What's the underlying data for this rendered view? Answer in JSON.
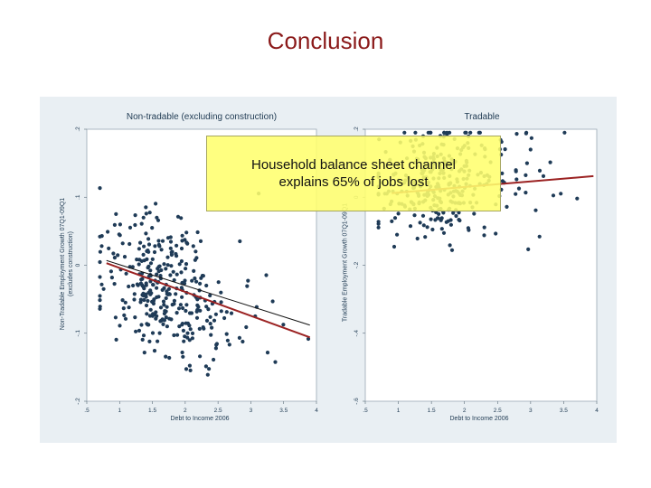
{
  "slide": {
    "title": "Conclusion"
  },
  "callout": {
    "line1": "Household balance sheet channel",
    "line2": "explains 65% of jobs lost",
    "background_color": "#ffff6e"
  },
  "chart_data": [
    {
      "type": "scatter",
      "title": "Non-tradable (excluding construction)",
      "xlabel": "Debt to Income 2006",
      "ylabel": "Non-Tradable Employment Growth 07Q1-09Q1",
      "ylabel2": "(excludes construction)",
      "xlim": [
        0.5,
        4
      ],
      "ylim": [
        -0.2,
        0.2
      ],
      "xticks": [
        ".5",
        "1",
        "1.5",
        "2",
        "2.5",
        "3",
        "3.5",
        "4"
      ],
      "yticks": [
        ".2",
        ".1",
        "0",
        "-.1",
        "-.2"
      ],
      "point_color": "#1f3b57",
      "fit_lines": [
        {
          "color": "#9b2222",
          "x": [
            0.8,
            3.9
          ],
          "y": [
            0.003,
            -0.106
          ]
        },
        {
          "color": "#111111",
          "x": [
            0.8,
            3.9
          ],
          "y": [
            0.007,
            -0.088
          ]
        }
      ],
      "scatter_params": {
        "n": 340,
        "x_center": 1.65,
        "slope": -0.035,
        "intercept": 0.028,
        "noise": 0.05,
        "seed": 11
      }
    },
    {
      "type": "scatter",
      "title": "Tradable",
      "xlabel": "Debt to Income 2006",
      "ylabel": "Tradable Employment Growth 07Q1-09Q1",
      "xlim": [
        0.5,
        4
      ],
      "ylim": [
        -0.6,
        0.2
      ],
      "xticks": [
        ".5",
        "1",
        "1.5",
        "2",
        "2.5",
        "3",
        "3.5",
        "4"
      ],
      "yticks": [
        ".2",
        "0",
        "-.2",
        "-.4",
        "-.6"
      ],
      "point_color": "#1f3b57",
      "fit_lines": [
        {
          "color": "#9b2222",
          "x": [
            0.9,
            3.95
          ],
          "y": [
            0.012,
            0.062
          ]
        }
      ],
      "scatter_params": {
        "n": 320,
        "x_center": 1.6,
        "slope": 0.016,
        "intercept": 0.02,
        "noise": 0.09,
        "seed": 29
      }
    }
  ]
}
